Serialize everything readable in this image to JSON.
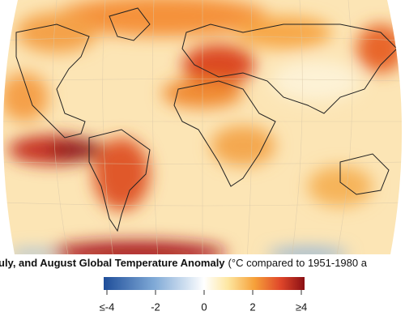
{
  "title": "uly, and August Global Temperature Anomaly",
  "subtitle": "(°C compared to 1951-1980 a",
  "colorbar": {
    "range": [
      -4,
      4
    ],
    "ticks": [
      {
        "value": -4,
        "label": "≤-4"
      },
      -2,
      0,
      2,
      {
        "value": 4,
        "label": "≥4"
      }
    ]
  }
}
